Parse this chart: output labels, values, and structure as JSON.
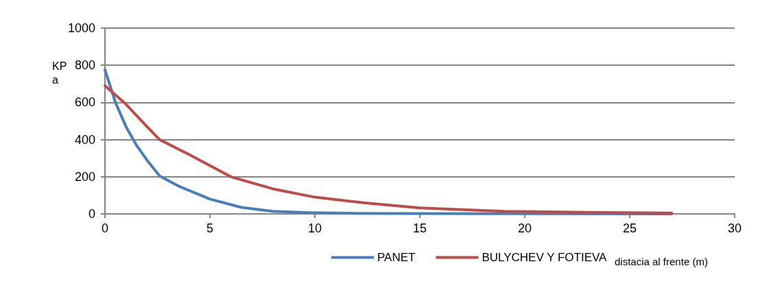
{
  "chart_data": {
    "type": "line",
    "xlabel": "distacia al frente (m)",
    "ylabel": "KPa",
    "xlim": [
      0,
      30
    ],
    "xticks": [
      0,
      5,
      10,
      15,
      20,
      25,
      30
    ],
    "ylim": [
      0,
      1000
    ],
    "yticks": [
      0,
      200,
      400,
      600,
      800,
      1000
    ],
    "grid": "y",
    "legend": "bottom",
    "marker": "none",
    "line_style": "solid",
    "series": [
      {
        "name": "PANET",
        "color": "#4a7ebb",
        "x": [
          0,
          0.5,
          1,
          1.5,
          2,
          2.6,
          3.5,
          5,
          6.5,
          8,
          10,
          12,
          15,
          20,
          27
        ],
        "values": [
          775,
          600,
          470,
          370,
          290,
          205,
          150,
          80,
          35,
          14,
          6,
          3,
          2,
          1,
          0
        ]
      },
      {
        "name": "BULYCHEV Y FOTIEVA",
        "color": "#be4b48",
        "x": [
          0,
          1,
          2,
          2.6,
          4,
          6,
          8,
          10,
          12.4,
          15,
          19,
          23,
          27
        ],
        "values": [
          690,
          590,
          470,
          400,
          320,
          200,
          135,
          90,
          59,
          32,
          14,
          8,
          5
        ]
      }
    ]
  }
}
